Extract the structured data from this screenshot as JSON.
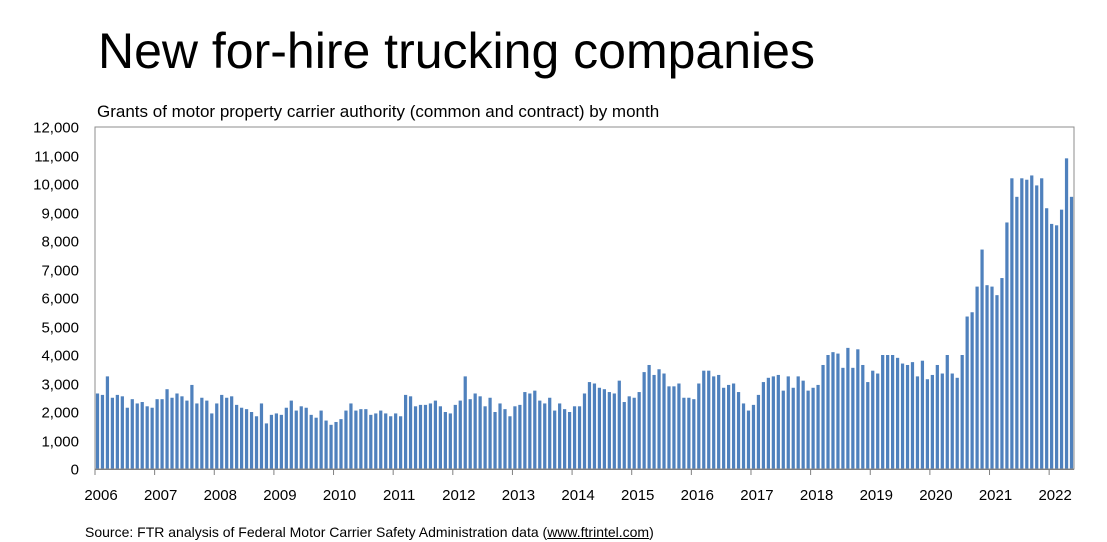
{
  "chart_data": {
    "type": "bar",
    "title": "New for-hire trucking companies",
    "subtitle": "Grants of motor property carrier authority (common and contract) by month",
    "source_prefix": "Source: FTR analysis of Federal Motor Carrier Safety Administration data (",
    "source_link": "www.ftrintel.com",
    "source_suffix": ")",
    "ylim": [
      0,
      12000
    ],
    "y_ticks": [
      "0",
      "1,000",
      "2,000",
      "3,000",
      "4,000",
      "5,000",
      "6,000",
      "7,000",
      "8,000",
      "9,000",
      "10,000",
      "11,000",
      "12,000"
    ],
    "x_ticks": [
      "2006",
      "2007",
      "2008",
      "2009",
      "2010",
      "2011",
      "2012",
      "2013",
      "2014",
      "2015",
      "2016",
      "2017",
      "2018",
      "2019",
      "2020",
      "2021",
      "2022"
    ],
    "start": "2006-01",
    "bar_color": "#4f81bd",
    "values": [
      2650,
      2600,
      3250,
      2500,
      2600,
      2550,
      2150,
      2450,
      2300,
      2350,
      2200,
      2150,
      2450,
      2450,
      2800,
      2500,
      2650,
      2550,
      2400,
      2950,
      2300,
      2500,
      2400,
      1950,
      2300,
      2600,
      2500,
      2550,
      2250,
      2150,
      2100,
      2000,
      1850,
      2300,
      1600,
      1900,
      1950,
      1900,
      2150,
      2400,
      2050,
      2200,
      2150,
      1900,
      1800,
      2050,
      1700,
      1550,
      1650,
      1750,
      2050,
      2300,
      2050,
      2100,
      2100,
      1900,
      1950,
      2050,
      1950,
      1850,
      1950,
      1850,
      2600,
      2550,
      2200,
      2250,
      2250,
      2300,
      2400,
      2200,
      2000,
      1950,
      2250,
      2400,
      3250,
      2450,
      2650,
      2550,
      2200,
      2500,
      2000,
      2300,
      2100,
      1850,
      2200,
      2250,
      2700,
      2650,
      2750,
      2400,
      2300,
      2500,
      2050,
      2300,
      2100,
      2000,
      2200,
      2200,
      2650,
      3050,
      3000,
      2850,
      2800,
      2700,
      2650,
      3100,
      2350,
      2550,
      2500,
      2700,
      3400,
      3650,
      3300,
      3500,
      3350,
      2900,
      2900,
      3000,
      2500,
      2500,
      2450,
      3000,
      3450,
      3450,
      3250,
      3300,
      2850,
      2950,
      3000,
      2700,
      2300,
      2050,
      2250,
      2600,
      3050,
      3200,
      3250,
      3300,
      2750,
      3250,
      2850,
      3250,
      3100,
      2750,
      2850,
      2950,
      3650,
      4000,
      4100,
      4050,
      3550,
      4250,
      3550,
      4200,
      3650,
      3050,
      3450,
      3350,
      4000,
      4000,
      4000,
      3900,
      3700,
      3650,
      3750,
      3250,
      3800,
      3150,
      3300,
      3650,
      3350,
      4000,
      3350,
      3200,
      4000,
      5350,
      5500,
      6400,
      7700,
      6450,
      6400,
      6100,
      6700,
      8650,
      10200,
      9550,
      10200,
      10150,
      10300,
      9950,
      10200,
      9150,
      8600,
      8550,
      9100,
      10900,
      9550
    ]
  }
}
